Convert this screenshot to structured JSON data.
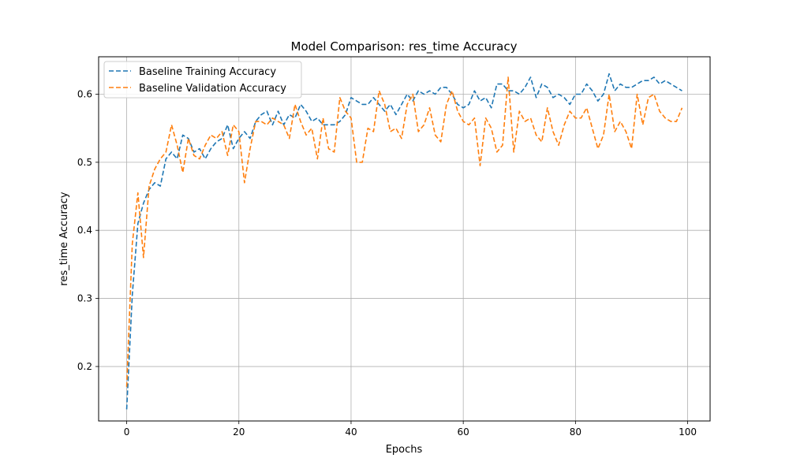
{
  "chart_data": {
    "type": "line",
    "title": "Model Comparison: res_time Accuracy",
    "xlabel": "Epochs",
    "ylabel": "res_time Accuracy",
    "xlim": [
      -5,
      104
    ],
    "ylim": [
      0.12,
      0.655
    ],
    "xticks": [
      0,
      20,
      40,
      60,
      80,
      100
    ],
    "yticks": [
      0.2,
      0.3,
      0.4,
      0.5,
      0.6
    ],
    "xtick_labels": [
      "0",
      "20",
      "40",
      "60",
      "80",
      "100"
    ],
    "ytick_labels": [
      "0.2",
      "0.3",
      "0.4",
      "0.5",
      "0.6"
    ],
    "grid": true,
    "legend_position": "top-left",
    "x": [
      0,
      1,
      2,
      3,
      4,
      5,
      6,
      7,
      8,
      9,
      10,
      11,
      12,
      13,
      14,
      15,
      16,
      17,
      18,
      19,
      20,
      21,
      22,
      23,
      24,
      25,
      26,
      27,
      28,
      29,
      30,
      31,
      32,
      33,
      34,
      35,
      36,
      37,
      38,
      39,
      40,
      41,
      42,
      43,
      44,
      45,
      46,
      47,
      48,
      49,
      50,
      51,
      52,
      53,
      54,
      55,
      56,
      57,
      58,
      59,
      60,
      61,
      62,
      63,
      64,
      65,
      66,
      67,
      68,
      69,
      70,
      71,
      72,
      73,
      74,
      75,
      76,
      77,
      78,
      79,
      80,
      81,
      82,
      83,
      84,
      85,
      86,
      87,
      88,
      89,
      90,
      91,
      92,
      93,
      94,
      95,
      96,
      97,
      98,
      99
    ],
    "series": [
      {
        "name": "Baseline Training Accuracy",
        "color": "#1f77b4",
        "values": [
          0.137,
          0.305,
          0.41,
          0.44,
          0.46,
          0.47,
          0.465,
          0.505,
          0.515,
          0.505,
          0.54,
          0.535,
          0.515,
          0.52,
          0.505,
          0.52,
          0.53,
          0.535,
          0.555,
          0.52,
          0.535,
          0.545,
          0.535,
          0.56,
          0.57,
          0.575,
          0.555,
          0.575,
          0.555,
          0.57,
          0.565,
          0.585,
          0.575,
          0.56,
          0.565,
          0.555,
          0.555,
          0.555,
          0.56,
          0.57,
          0.595,
          0.59,
          0.585,
          0.585,
          0.595,
          0.585,
          0.575,
          0.585,
          0.57,
          0.585,
          0.6,
          0.59,
          0.605,
          0.6,
          0.605,
          0.6,
          0.61,
          0.61,
          0.6,
          0.585,
          0.58,
          0.585,
          0.605,
          0.59,
          0.595,
          0.58,
          0.615,
          0.615,
          0.605,
          0.605,
          0.6,
          0.61,
          0.625,
          0.595,
          0.615,
          0.61,
          0.595,
          0.6,
          0.595,
          0.585,
          0.6,
          0.6,
          0.615,
          0.605,
          0.59,
          0.6,
          0.63,
          0.605,
          0.615,
          0.61,
          0.61,
          0.615,
          0.62,
          0.62,
          0.625,
          0.615,
          0.62,
          0.615,
          0.61,
          0.605
        ]
      },
      {
        "name": "Baseline Validation Accuracy",
        "color": "#ff7f0e",
        "values": [
          0.17,
          0.38,
          0.455,
          0.36,
          0.465,
          0.49,
          0.505,
          0.515,
          0.555,
          0.525,
          0.485,
          0.535,
          0.51,
          0.505,
          0.525,
          0.54,
          0.535,
          0.545,
          0.51,
          0.555,
          0.545,
          0.47,
          0.52,
          0.56,
          0.56,
          0.555,
          0.565,
          0.56,
          0.555,
          0.535,
          0.585,
          0.56,
          0.54,
          0.55,
          0.505,
          0.565,
          0.52,
          0.515,
          0.595,
          0.575,
          0.565,
          0.5,
          0.5,
          0.55,
          0.545,
          0.605,
          0.585,
          0.545,
          0.55,
          0.535,
          0.585,
          0.6,
          0.545,
          0.555,
          0.58,
          0.54,
          0.53,
          0.585,
          0.605,
          0.575,
          0.56,
          0.555,
          0.565,
          0.495,
          0.565,
          0.55,
          0.515,
          0.525,
          0.625,
          0.515,
          0.575,
          0.56,
          0.565,
          0.54,
          0.53,
          0.58,
          0.545,
          0.525,
          0.555,
          0.575,
          0.565,
          0.565,
          0.58,
          0.55,
          0.52,
          0.54,
          0.6,
          0.545,
          0.56,
          0.545,
          0.52,
          0.6,
          0.555,
          0.595,
          0.6,
          0.575,
          0.565,
          0.56,
          0.56,
          0.58
        ]
      }
    ]
  }
}
